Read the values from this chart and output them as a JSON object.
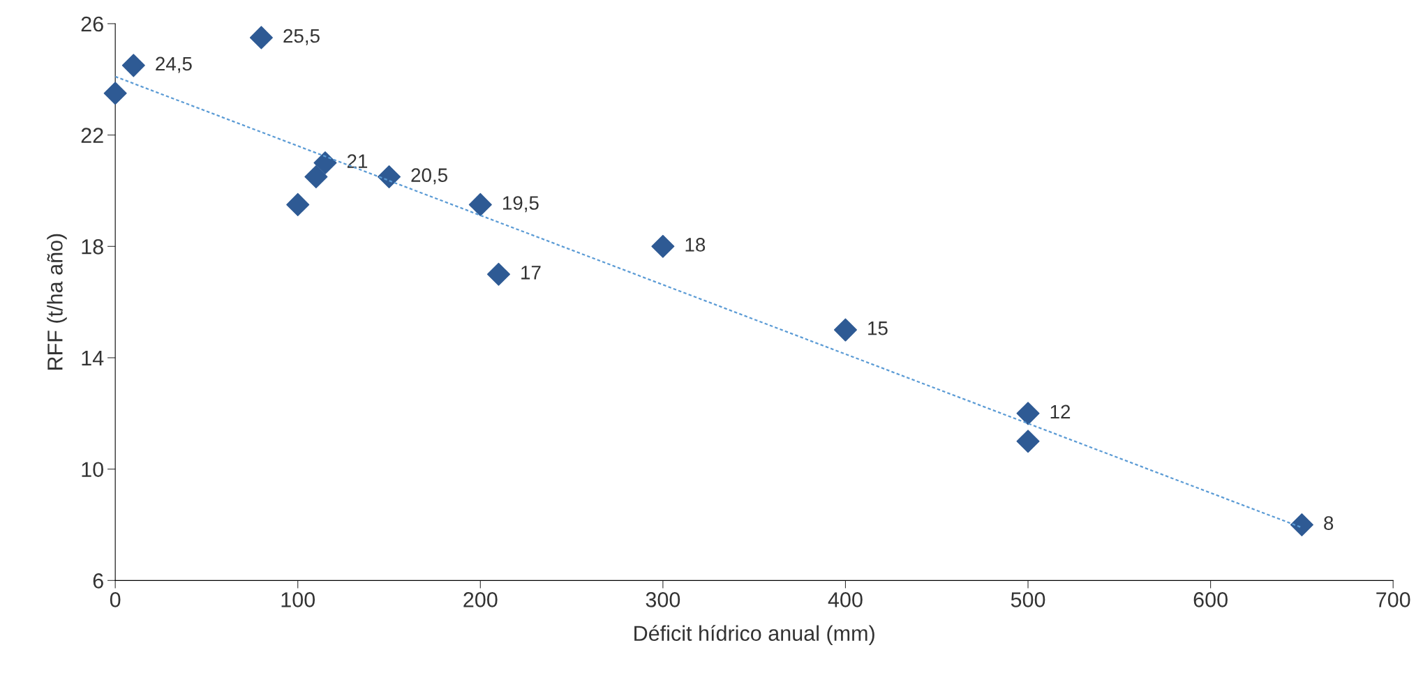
{
  "chart_data": {
    "type": "scatter",
    "xlabel": "Déficit hídrico anual (mm)",
    "ylabel": "RFF (t/ha año)",
    "xlim": [
      0,
      700
    ],
    "xticks": [
      0,
      100,
      200,
      300,
      400,
      500,
      600,
      700
    ],
    "ylim": [
      6,
      26
    ],
    "yticks": [
      6,
      10,
      14,
      18,
      22,
      26
    ],
    "grid": false,
    "series": [
      {
        "color": "#2e5a94",
        "marker": "diamond",
        "x": [
          0,
          10,
          80,
          100,
          110,
          115,
          150,
          200,
          210,
          300,
          400,
          500,
          500,
          650
        ],
        "values": [
          23.5,
          24.5,
          25.5,
          19.5,
          20.5,
          21,
          20.5,
          19.5,
          17,
          18,
          15,
          12,
          11,
          8
        ],
        "value_labels": [
          null,
          "24,5",
          "25,5",
          null,
          null,
          "21",
          "20,5",
          "19,5",
          "17",
          "18",
          "15",
          "12",
          null,
          "8"
        ]
      },
      {
        "type": "line",
        "color": "#5b9bd5",
        "marker": "none",
        "line_style": "dashed",
        "x": [
          0,
          650
        ],
        "values": [
          24.1,
          7.9
        ]
      }
    ]
  }
}
